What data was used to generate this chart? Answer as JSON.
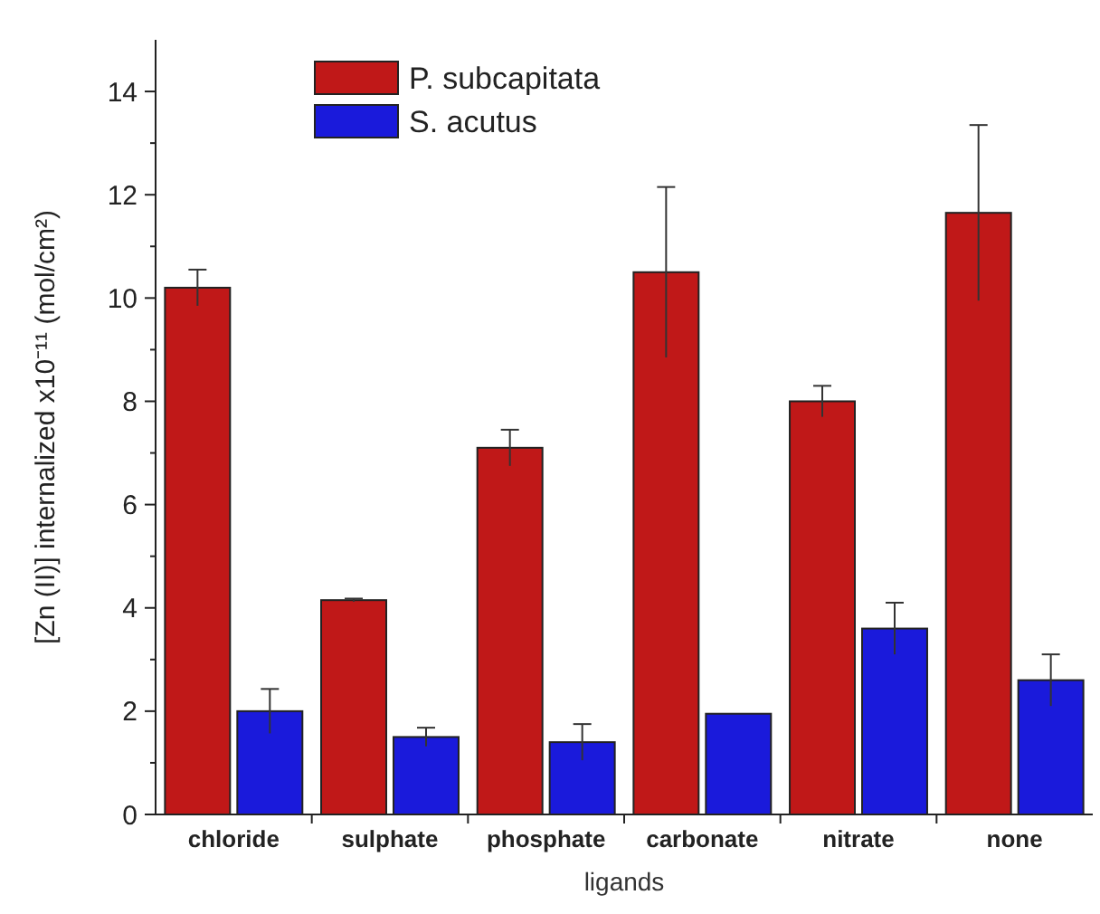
{
  "chart_data": {
    "type": "bar",
    "xlabel": "ligands",
    "ylabel": "[Zn (II)] internalized x10⁻¹¹ (mol/cm²)",
    "categories": [
      "chloride",
      "sulphate",
      "phosphate",
      "carbonate",
      "nitrate",
      "none"
    ],
    "series": [
      {
        "name": "P. subcapitata",
        "color": "#c01818",
        "values": [
          10.2,
          4.15,
          7.1,
          10.5,
          8.0,
          11.65
        ],
        "errors": [
          0.35,
          0.03,
          0.35,
          1.65,
          0.3,
          1.7
        ]
      },
      {
        "name": "S. acutus",
        "color": "#1a1adb",
        "values": [
          2.0,
          1.5,
          1.4,
          1.95,
          3.6,
          2.6
        ],
        "errors": [
          0.43,
          0.18,
          0.35,
          null,
          0.5,
          0.5
        ]
      }
    ],
    "ylim": [
      0,
      15
    ],
    "yticks": [
      0,
      2,
      4,
      6,
      8,
      10,
      12,
      14
    ],
    "legend": "top left"
  }
}
